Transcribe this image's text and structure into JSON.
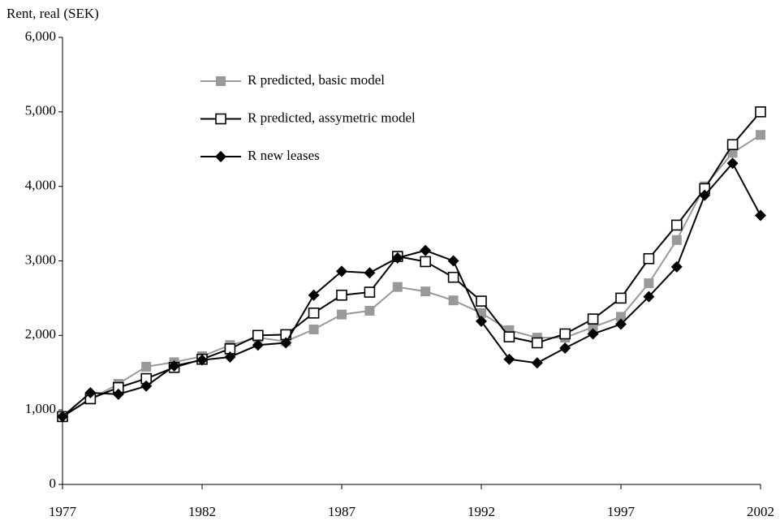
{
  "chart_data": {
    "type": "line",
    "y_label": "Rent, real (SEK)",
    "x": [
      1977,
      1978,
      1979,
      1980,
      1981,
      1982,
      1983,
      1984,
      1985,
      1986,
      1987,
      1988,
      1989,
      1990,
      1991,
      1992,
      1993,
      1994,
      1995,
      1996,
      1997,
      1998,
      1999,
      2000,
      2001,
      2002
    ],
    "series": [
      {
        "name": "R predicted, basic model",
        "color": "#999999",
        "marker": "square",
        "values": [
          910,
          1140,
          1350,
          1580,
          1640,
          1720,
          1870,
          1970,
          1920,
          2080,
          2280,
          2330,
          2650,
          2590,
          2470,
          2300,
          2070,
          1970,
          1970,
          2110,
          2250,
          2700,
          3280,
          4000,
          4450,
          4690
        ]
      },
      {
        "name": "R predicted, assymetric model",
        "color": "#000000",
        "marker": "open-square",
        "values": [
          910,
          1150,
          1300,
          1420,
          1570,
          1680,
          1820,
          2000,
          2010,
          2300,
          2540,
          2580,
          3060,
          2990,
          2780,
          2460,
          1980,
          1900,
          2020,
          2220,
          2500,
          3030,
          3480,
          3970,
          4560,
          5000
        ]
      },
      {
        "name": "R new leases",
        "color": "#000000",
        "marker": "diamond",
        "values": [
          910,
          1230,
          1210,
          1320,
          1590,
          1670,
          1710,
          1870,
          1900,
          2540,
          2860,
          2840,
          3040,
          3140,
          3000,
          2190,
          1680,
          1630,
          1830,
          2020,
          2150,
          2520,
          2920,
          3880,
          4310,
          3610
        ]
      }
    ],
    "xlim": [
      1977,
      2002
    ],
    "xticks": [
      1977,
      1982,
      1987,
      1992,
      1997,
      2002
    ],
    "ylim": [
      0,
      6000
    ],
    "yticks": [
      0,
      {
        "value": 1000,
        "label": "1,000"
      },
      {
        "value": 2000,
        "label": "2,000"
      },
      {
        "value": 3000,
        "label": "3,000"
      },
      {
        "value": 4000,
        "label": "4,000"
      },
      {
        "value": 5000,
        "label": "5,000"
      },
      {
        "value": 6000,
        "label": "6,000"
      }
    ],
    "grid": false,
    "legend": "top-left"
  }
}
